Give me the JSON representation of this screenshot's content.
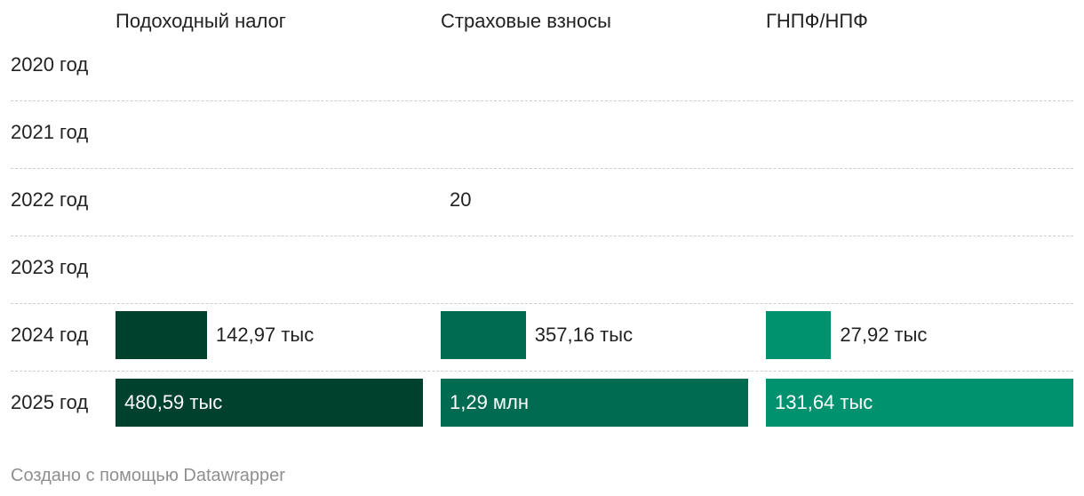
{
  "chart_data": {
    "type": "bar",
    "title": "",
    "columns": [
      {
        "name": "Подоходный налог",
        "color": "#00412e",
        "max": 480590
      },
      {
        "name": "Страховые взносы",
        "color": "#006b51",
        "max": 1290000
      },
      {
        "name": "ГНПФ/НПФ",
        "color": "#00916f",
        "max": 131640
      }
    ],
    "categories": [
      "2020 год",
      "2021 год",
      "2022 год",
      "2023 год",
      "2024 год",
      "2025 год"
    ],
    "series": [
      {
        "name": "Подоходный налог",
        "values": [
          null,
          null,
          null,
          null,
          142970,
          480590
        ],
        "labels": [
          "",
          "",
          "",
          "",
          "142,97 тыс",
          "480,59 тыс"
        ]
      },
      {
        "name": "Страховые взносы",
        "values": [
          null,
          null,
          20,
          null,
          357160,
          1290000
        ],
        "labels": [
          "",
          "",
          "20",
          "",
          "357,16 тыс",
          "1,29 млн"
        ]
      },
      {
        "name": "ГНПФ/НПФ",
        "values": [
          null,
          null,
          null,
          null,
          27920,
          131640
        ],
        "labels": [
          "",
          "",
          "",
          "",
          "27,92 тыс",
          "131,64 тыс"
        ]
      }
    ]
  },
  "footer": "Создано с помощью Datawrapper"
}
